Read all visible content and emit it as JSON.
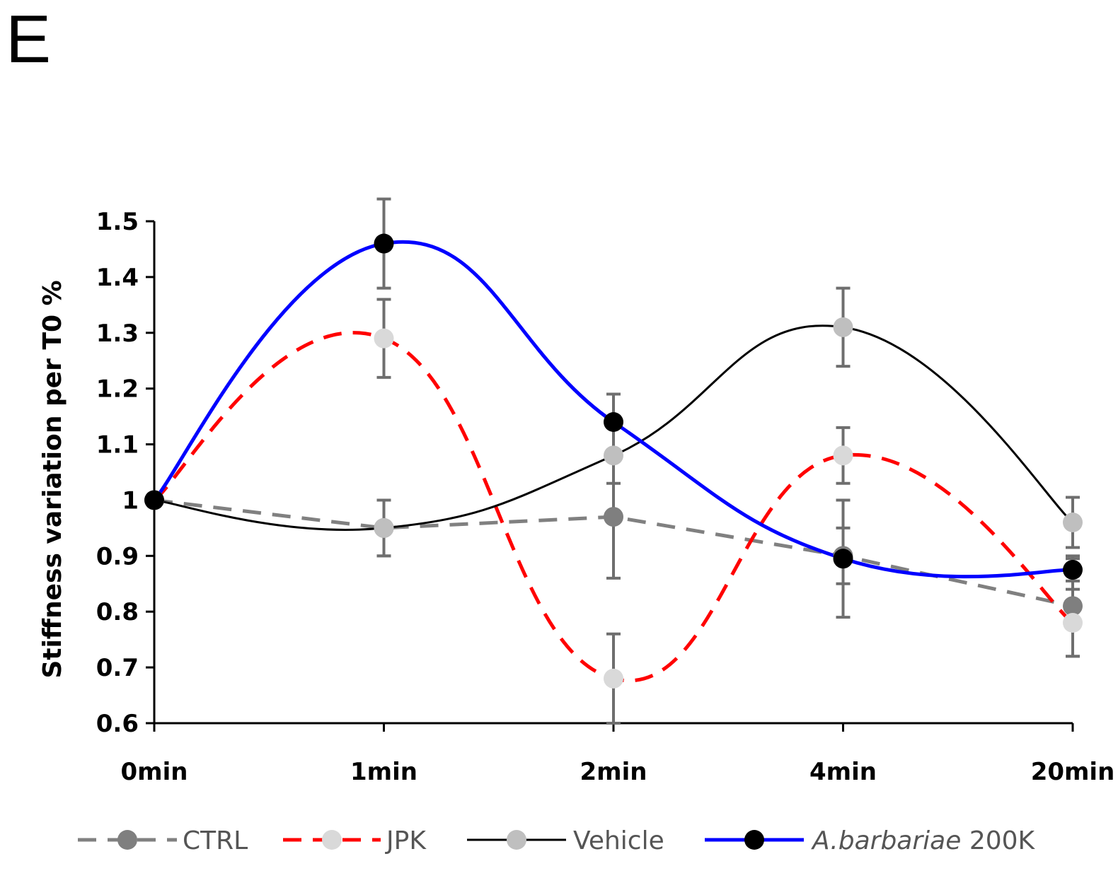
{
  "panel_label": "E",
  "chart_data": {
    "type": "line",
    "categories": [
      "0min",
      "1min",
      "2min",
      "4min",
      "20min"
    ],
    "ylabel": "Stiffness variation per T0 %",
    "xlabel": "",
    "ylim": [
      0.6,
      1.5
    ],
    "yticks": [
      0.6,
      0.7,
      0.8,
      0.9,
      1,
      1.1,
      1.2,
      1.3,
      1.4,
      1.5
    ],
    "ytick_labels": [
      "0.6",
      "0.7",
      "0.8",
      "0.9",
      "1",
      "1.1",
      "1.2",
      "1.3",
      "1.4",
      "1.5"
    ],
    "series": [
      {
        "name": "CTRL",
        "values": [
          1.0,
          0.95,
          0.97,
          0.9,
          0.81
        ],
        "errors": [
          0,
          0.05,
          0.11,
          0.05,
          0.09
        ],
        "line_color": "#808080",
        "marker_color": "#7f7f7f",
        "dash": "dashed",
        "smooth": false
      },
      {
        "name": "JPK",
        "values": [
          1.0,
          1.29,
          0.68,
          1.08,
          0.78
        ],
        "errors": [
          0,
          0.07,
          0.08,
          0.05,
          0.06
        ],
        "line_color": "#ff0000",
        "marker_color": "#d9d9d9",
        "dash": "dashed",
        "smooth": true
      },
      {
        "name": "Vehicle",
        "values": [
          1.0,
          0.95,
          1.08,
          1.31,
          0.96
        ],
        "errors": [
          0,
          0.05,
          0.05,
          0.07,
          0.045
        ],
        "line_color": "#000000",
        "marker_color": "#bfbfbf",
        "dash": "solid",
        "smooth": true
      },
      {
        "name": "A.barbariae 200K",
        "name_italic": "A.barbariae",
        "name_suffix": " 200K",
        "values": [
          1.0,
          1.46,
          1.14,
          0.895,
          0.875
        ],
        "errors": [
          0,
          0.08,
          0.05,
          0.105,
          0.02
        ],
        "line_color": "#0000ff",
        "marker_color": "#000000",
        "dash": "solid",
        "smooth": true
      }
    ],
    "legend_position": "bottom"
  }
}
